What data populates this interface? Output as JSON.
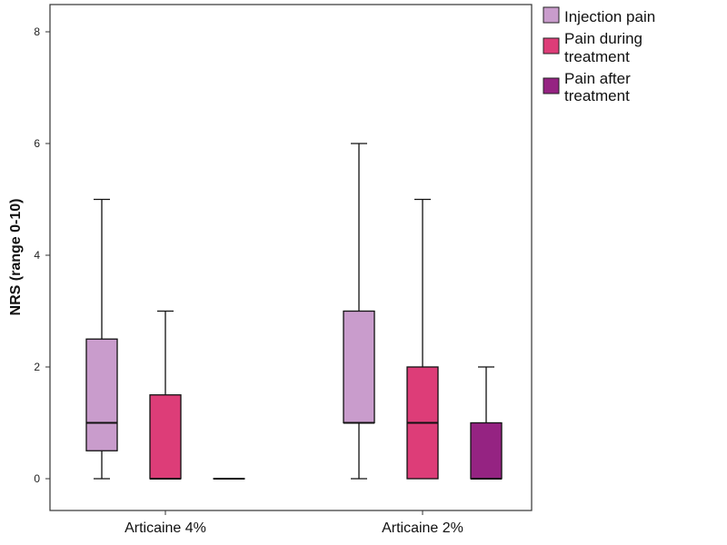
{
  "chart_data": {
    "type": "boxplot",
    "ylabel": "NRS (range 0-10)",
    "xlabel": "",
    "ylim": [
      0,
      8
    ],
    "yticks": [
      0,
      2,
      4,
      6,
      8
    ],
    "categories": [
      "Articaine 4%",
      "Articaine 2%"
    ],
    "legend_position": "top-right",
    "grid": false,
    "series": [
      {
        "name": "Injection pain",
        "color": "#c99ccc",
        "boxes": [
          {
            "min": 0,
            "q1": 0.5,
            "median": 1,
            "q3": 2.5,
            "max": 5
          },
          {
            "min": 0,
            "q1": 1,
            "median": 1,
            "q3": 3,
            "max": 6
          }
        ]
      },
      {
        "name": "Pain during treatment",
        "legend_lines": [
          "Pain during",
          "treatment"
        ],
        "color": "#dd3d78",
        "boxes": [
          {
            "min": 0,
            "q1": 0,
            "median": 0,
            "q3": 1.5,
            "max": 3
          },
          {
            "min": 0,
            "q1": 0,
            "median": 1,
            "q3": 2,
            "max": 5
          }
        ]
      },
      {
        "name": "Pain after treatment",
        "legend_lines": [
          "Pain after",
          "treatment"
        ],
        "color": "#952382",
        "boxes": [
          {
            "min": 0,
            "q1": 0,
            "median": 0,
            "q3": 0,
            "max": 0
          },
          {
            "min": 0,
            "q1": 0,
            "median": 0,
            "q3": 1,
            "max": 2
          }
        ]
      }
    ]
  }
}
